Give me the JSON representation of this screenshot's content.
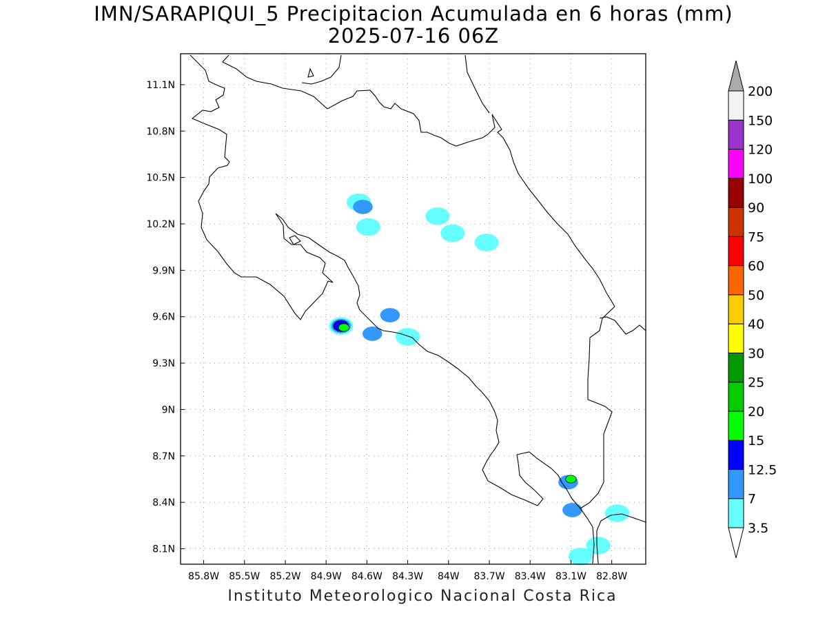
{
  "title": "IMN/SARAPIQUI_5 Precipitacion Acumulada en 6 horas (mm)",
  "subtitle": "2025-07-16 06Z",
  "footer": "Instituto Meteorologico Nacional Costa Rica",
  "axes": {
    "lon_ticks": [
      "85.8W",
      "85.5W",
      "85.2W",
      "84.9W",
      "84.6W",
      "84.3W",
      "84W",
      "83.7W",
      "83.4W",
      "83.1W",
      "82.8W"
    ],
    "lon_values": [
      -85.8,
      -85.5,
      -85.2,
      -84.9,
      -84.6,
      -84.3,
      -84.0,
      -83.7,
      -83.4,
      -83.1,
      -82.8
    ],
    "lat_ticks": [
      "11.1N",
      "10.8N",
      "10.5N",
      "10.2N",
      "9.9N",
      "9.6N",
      "9.3N",
      "9N",
      "8.7N",
      "8.4N",
      "8.1N"
    ],
    "lat_values": [
      11.1,
      10.8,
      10.5,
      10.2,
      9.9,
      9.6,
      9.3,
      9.0,
      8.7,
      8.4,
      8.1
    ],
    "lon_range": [
      -85.97,
      -82.55
    ],
    "lat_range": [
      8.0,
      11.3
    ],
    "grid": true
  },
  "colorbar": {
    "labels": [
      "3.5",
      "7",
      "12.5",
      "15",
      "20",
      "25",
      "30",
      "40",
      "50",
      "60",
      "75",
      "90",
      "100",
      "120",
      "150",
      "200"
    ],
    "colors": [
      "#66ffff",
      "#3399ff",
      "#0000ff",
      "#00ff00",
      "#00cc00",
      "#009900",
      "#ffff00",
      "#ffcc00",
      "#ff6600",
      "#ff0000",
      "#cc3300",
      "#990000",
      "#ff00ff",
      "#9933cc",
      "#f4f4f4",
      "#aaaaaa"
    ],
    "top_arrow_color": "#aaaaaa",
    "bottom_arrow_color": "#ffffff"
  },
  "precip_cells": [
    {
      "lon": -84.66,
      "lat": 10.34,
      "level": "3.5"
    },
    {
      "lon": -84.63,
      "lat": 10.31,
      "level": "7"
    },
    {
      "lon": -84.59,
      "lat": 10.18,
      "level": "3.5"
    },
    {
      "lon": -84.08,
      "lat": 10.25,
      "level": "3.5"
    },
    {
      "lon": -83.97,
      "lat": 10.14,
      "level": "3.5"
    },
    {
      "lon": -83.72,
      "lat": 10.08,
      "level": "3.5"
    },
    {
      "lon": -84.79,
      "lat": 9.54,
      "level": "3.5"
    },
    {
      "lon": -84.79,
      "lat": 9.54,
      "level": "7"
    },
    {
      "lon": -84.79,
      "lat": 9.54,
      "level": "12.5"
    },
    {
      "lon": -84.77,
      "lat": 9.53,
      "level": "15"
    },
    {
      "lon": -84.56,
      "lat": 9.49,
      "level": "7"
    },
    {
      "lon": -84.43,
      "lat": 9.61,
      "level": "7"
    },
    {
      "lon": -84.3,
      "lat": 9.47,
      "level": "3.5"
    },
    {
      "lon": -83.12,
      "lat": 8.53,
      "level": "7"
    },
    {
      "lon": -83.1,
      "lat": 8.55,
      "level": "15"
    },
    {
      "lon": -83.09,
      "lat": 8.35,
      "level": "7"
    },
    {
      "lon": -82.76,
      "lat": 8.33,
      "level": "3.5"
    },
    {
      "lon": -82.9,
      "lat": 8.12,
      "level": "3.5"
    },
    {
      "lon": -83.03,
      "lat": 8.05,
      "level": "3.5"
    }
  ]
}
